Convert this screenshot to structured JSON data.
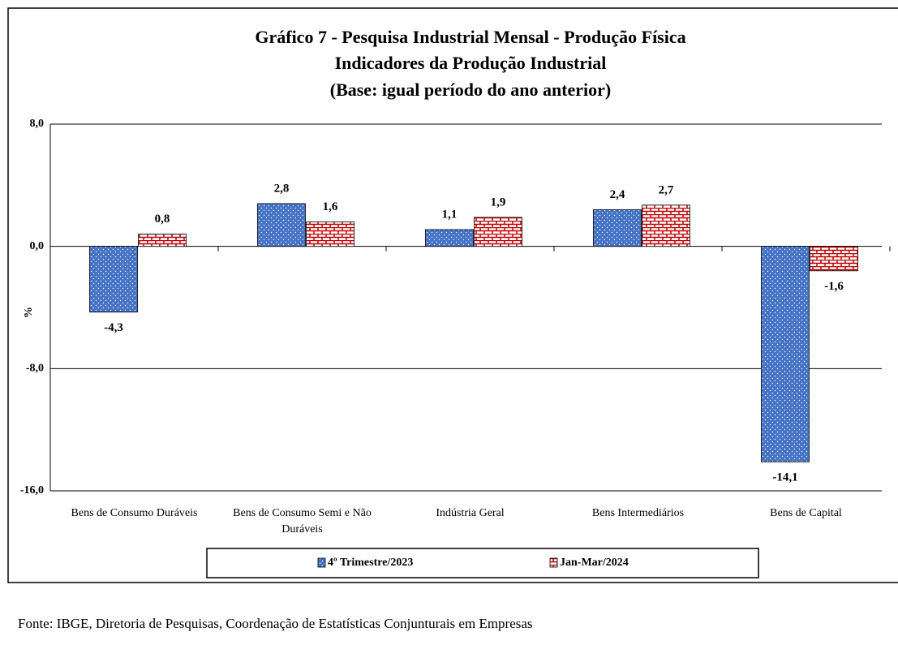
{
  "chart_data": {
    "type": "bar",
    "title": "Gráfico 7 - Pesquisa Industrial Mensal - Produção Física",
    "subtitle": [
      "Indicadores da Produção Industrial",
      "(Base: igual período do ano anterior)"
    ],
    "y_label": "%",
    "categories": [
      "Bens de Consumo Duráveis",
      "Bens de Consumo Semi e Não Duráveis",
      "Indústria Geral",
      "Bens Intermediários",
      "Bens de Capital"
    ],
    "series": [
      {
        "name": "4º Trimestre/2023",
        "color": "#4472c4",
        "values": [
          -4.3,
          2.8,
          1.1,
          2.4,
          -14.1
        ],
        "value_labels": [
          "-4,3",
          "2,8",
          "1,1",
          "2,4",
          "-14,1"
        ]
      },
      {
        "name": "Jan-Mar/2024",
        "color": "#c00000",
        "values": [
          0.8,
          1.6,
          1.9,
          2.7,
          -1.6
        ],
        "value_labels": [
          "0,8",
          "1,6",
          "1,9",
          "2,7",
          "-1,6"
        ]
      }
    ],
    "ylim": [
      -16,
      8
    ],
    "yticks": [
      {
        "value": -16,
        "label": "-16,0"
      },
      {
        "value": -8,
        "label": "-8,0"
      },
      {
        "value": 0,
        "label": "0,0"
      },
      {
        "value": 8,
        "label": "8,0"
      }
    ],
    "grid": true,
    "legend": "bottom",
    "source": "Fonte: IBGE, Diretoria de Pesquisas, Coordenação de Estatísticas Conjunturais em Empresas"
  }
}
